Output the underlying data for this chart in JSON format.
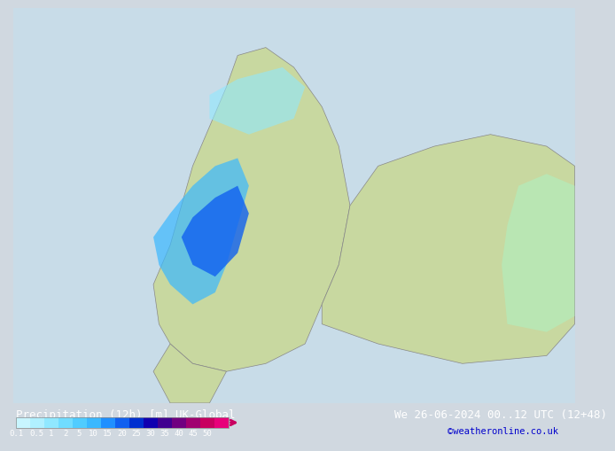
{
  "title_left": "Precipitation (12h) [m] UK-Global",
  "title_right": "We 26-06-2024 00..12 UTC (12+48)",
  "credit": "©weatheronline.co.uk",
  "colorbar_labels": [
    "0.1",
    "0.5",
    "1",
    "2",
    "5",
    "10",
    "15",
    "20",
    "25",
    "30",
    "35",
    "40",
    "45",
    "50"
  ],
  "colorbar_colors": [
    "#c8f5ff",
    "#b0f0ff",
    "#90e8ff",
    "#70dcff",
    "#50ccff",
    "#3ab8ff",
    "#2090ff",
    "#1060f0",
    "#0030d0",
    "#1000b0",
    "#400090",
    "#700080",
    "#a00070",
    "#c80060",
    "#e8007a"
  ],
  "bg_color": "#d0d8e0",
  "map_bg": "#c8dce8",
  "bottom_bar_color": "#202020",
  "label_fontsize": 8,
  "title_fontsize": 9,
  "credit_color": "#0000cc"
}
